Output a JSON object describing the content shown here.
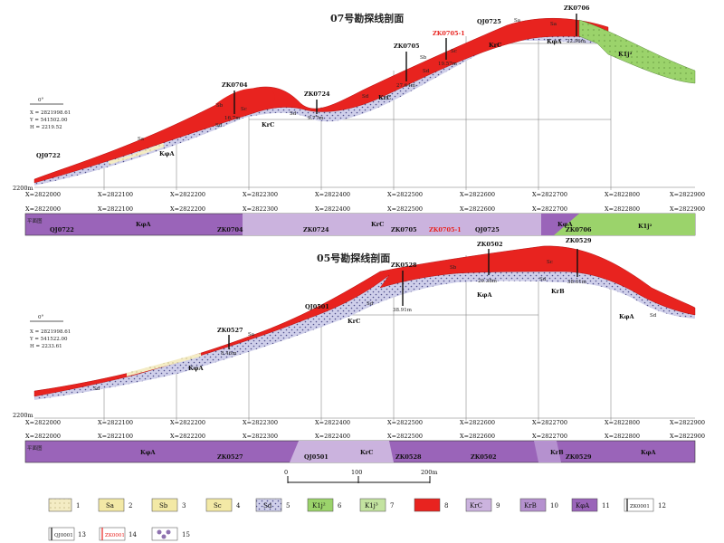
{
  "colors": {
    "ore": "#e8231f",
    "kpsa": "#9a64b9",
    "krc": "#cbb3de",
    "krb": "#b591cf",
    "k1j2": "#9bd36b",
    "k1j3": "#c3e3a0",
    "weathered": "#c9c9e6",
    "sa": "#f3e9a6"
  },
  "sections": [
    {
      "title": "07号勘探线剖面",
      "header": {
        "azimuth": "0°",
        "x": "X = 2821998.61",
        "y": "Y = 541502.00",
        "h": "H = 2219.52"
      },
      "elevation_label": "2200m",
      "ticks": [
        "X=2822000",
        "X=2822100",
        "X=2822200",
        "X=2822300",
        "X=2822400",
        "X=2822500",
        "X=2822600",
        "X=2822700",
        "X=2822800",
        "X=2822900"
      ],
      "strip_label": "平面图",
      "holes": [
        {
          "name": "ZK0704",
          "depth": "16.7m"
        },
        {
          "name": "ZK0724",
          "depth": "9.77m"
        },
        {
          "name": "ZK0705",
          "depth": "27.64m"
        },
        {
          "name": "ZK0705-1",
          "depth": "19.57m"
        },
        {
          "name": "QJ0725",
          "depth": ""
        },
        {
          "name": "ZK0706",
          "depth": "22.96m"
        }
      ],
      "labels": [
        "QJ0722",
        "KφA",
        "Sa",
        "Sb",
        "Sc",
        "Sd",
        "KrC",
        "Sd",
        "Sd",
        "Sb",
        "Sc",
        "KrC",
        "Sd",
        "KrC",
        "Sa",
        "Sa",
        "KφA",
        "K1j²"
      ],
      "strip": [
        {
          "label": "QJ0722"
        },
        {
          "label": "KφA"
        },
        {
          "label": "ZK0704"
        },
        {
          "label": "ZK0724"
        },
        {
          "label": "KrC"
        },
        {
          "label": "ZK0705"
        },
        {
          "label": "ZK0705-1"
        },
        {
          "label": "QJ0725"
        },
        {
          "label": "KφA"
        },
        {
          "label": "ZK0706"
        },
        {
          "label": "K1j²"
        }
      ]
    },
    {
      "title": "05号勘探线剖面",
      "header": {
        "azimuth": "0°",
        "x": "X = 2821998.61",
        "y": "Y = 541522.00",
        "h": "H = 2233.61"
      },
      "elevation_label": "2200m",
      "ticks": [
        "X=2822000",
        "X=2822100",
        "X=2822200",
        "X=2822300",
        "X=2822400",
        "X=2822500",
        "X=2822600",
        "X=2822700",
        "X=2822800",
        "X=2822900"
      ],
      "strip_label": "平面图",
      "holes": [
        {
          "name": "ZK0527",
          "depth": "8.46m"
        },
        {
          "name": "QJ0501",
          "depth": ""
        },
        {
          "name": "ZK0528",
          "depth": "38.91m"
        },
        {
          "name": "ZK0502",
          "depth": "29.38m"
        },
        {
          "name": "ZK0529",
          "depth": "38.61m"
        }
      ],
      "labels": [
        "Sd",
        "KφA",
        "Sa",
        "Sd",
        "KrC",
        "Sb",
        "KφA",
        "Sc",
        "Sd",
        "KrB",
        "KφA",
        "Sd"
      ],
      "strip": [
        {
          "label": "KφA"
        },
        {
          "label": "ZK0527"
        },
        {
          "label": "QJ0501"
        },
        {
          "label": "KrC"
        },
        {
          "label": "ZK0528"
        },
        {
          "label": "ZK0502"
        },
        {
          "label": "KrB"
        },
        {
          "label": "ZK0529"
        },
        {
          "label": "KφA"
        }
      ]
    }
  ],
  "scale": {
    "labels": [
      "0",
      "100",
      "200m"
    ]
  },
  "legend": [
    {
      "num": "1",
      "text": ""
    },
    {
      "num": "2",
      "text": "Sa"
    },
    {
      "num": "3",
      "text": "Sb"
    },
    {
      "num": "4",
      "text": "Sc"
    },
    {
      "num": "5",
      "text": "Sd"
    },
    {
      "num": "6",
      "text": "K1j²"
    },
    {
      "num": "7",
      "text": "K1j³"
    },
    {
      "num": "8",
      "text": ""
    },
    {
      "num": "9",
      "text": "KrC"
    },
    {
      "num": "10",
      "text": "KrB"
    },
    {
      "num": "11",
      "text": "KφA"
    },
    {
      "num": "12",
      "text": "ZK0001"
    },
    {
      "num": "13",
      "text": "QJ0001"
    },
    {
      "num": "14",
      "text": "ZK0001"
    },
    {
      "num": "15",
      "text": ""
    }
  ]
}
